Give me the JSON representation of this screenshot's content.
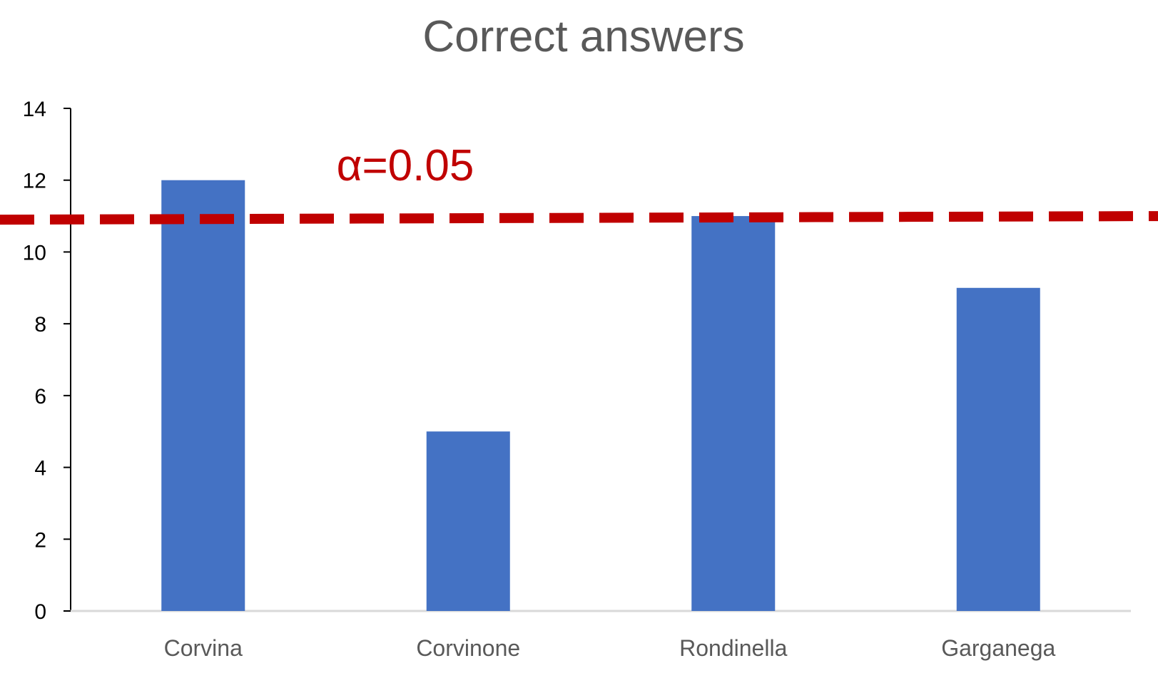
{
  "chart_data": {
    "type": "bar",
    "title": "Correct answers",
    "categories": [
      "Corvina",
      "Corvinone",
      "Rondinella",
      "Garganega"
    ],
    "values": [
      12,
      5,
      11,
      9
    ],
    "ylim": [
      0,
      14
    ],
    "yticks": [
      0,
      2,
      4,
      6,
      8,
      10,
      12,
      14
    ],
    "xlabel": "",
    "ylabel": "",
    "grid": false,
    "legend": "none",
    "bar_color": "#4472C4",
    "threshold": {
      "label": "α=0.05",
      "value_start": 10.9,
      "value_end": 11.0,
      "color": "#C00000",
      "style": "dashed"
    }
  }
}
